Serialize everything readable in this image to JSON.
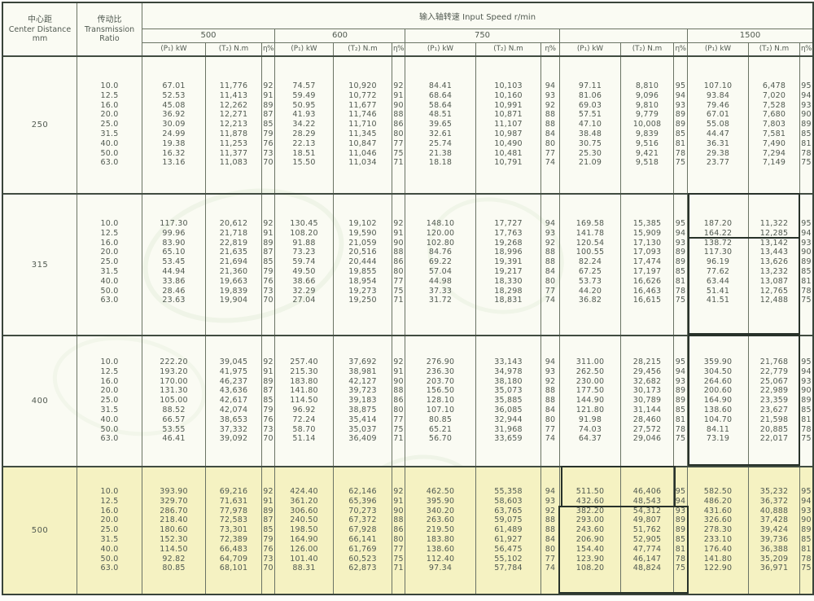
{
  "header": {
    "col_center_distance": {
      "line1": "中心距",
      "line2": "Center Distance",
      "line3": "mm"
    },
    "col_transmission_ratio": {
      "line1": "传动比",
      "line2": "Transmission",
      "line3": "Ratio"
    },
    "input_speed_label": "输入轴转速  Input Speed r/min",
    "speed_groups": [
      "500",
      "600",
      "750",
      "",
      "1500"
    ],
    "sub_headers": {
      "power": "(P₁) kW",
      "torque": "(T₂) N.m",
      "efficiency": "η%"
    }
  },
  "colors": {
    "highlight_row_bg": "#f5f2c2",
    "grid_line": "#6a7364",
    "block_line": "#414c41",
    "annotation_box": "#28322a",
    "text": "#515a51"
  },
  "table": {
    "blocks": [
      {
        "center_distance": "250",
        "highlighted": false,
        "ratios": [
          "10.0",
          "12.5",
          "16.0",
          "20.0",
          "25.0",
          "31.5",
          "40.0",
          "50.0",
          "63.0"
        ],
        "groups": [
          {
            "speed": "500",
            "P": [
              "67.01",
              "52.53",
              "45.08",
              "36.92",
              "30.09",
              "24.99",
              "19.38",
              "16.32",
              "13.16"
            ],
            "T": [
              "11,776",
              "11,413",
              "12,262",
              "12,271",
              "12,213",
              "11,878",
              "11,253",
              "11,377",
              "11,083"
            ],
            "eta": [
              "92",
              "91",
              "89",
              "87",
              "85",
              "79",
              "76",
              "73",
              "70"
            ]
          },
          {
            "speed": "600",
            "P": [
              "74.57",
              "59.49",
              "50.95",
              "41.93",
              "34.22",
              "28.29",
              "22.13",
              "18.51",
              "15.50"
            ],
            "T": [
              "10,920",
              "10,772",
              "11,677",
              "11,746",
              "11,710",
              "11,345",
              "10,847",
              "11,046",
              "11,034"
            ],
            "eta": [
              "92",
              "91",
              "90",
              "88",
              "86",
              "80",
              "77",
              "75",
              "71"
            ]
          },
          {
            "speed": "750",
            "P": [
              "84.41",
              "68.64",
              "58.64",
              "48.51",
              "39.65",
              "32.61",
              "25.74",
              "21.38",
              "18.18"
            ],
            "T": [
              "10,103",
              "10,160",
              "10,991",
              "10,871",
              "11,107",
              "10,987",
              "10,490",
              "10,481",
              "10,791"
            ],
            "eta": [
              "94",
              "93",
              "92",
              "88",
              "88",
              "84",
              "80",
              "77",
              "74"
            ]
          },
          {
            "speed": "",
            "P": [
              "97.11",
              "81.06",
              "69.03",
              "57.51",
              "47.10",
              "38.48",
              "30.75",
              "25.30",
              "21.09"
            ],
            "T": [
              "8,810",
              "9,096",
              "9,810",
              "9,779",
              "10,008",
              "9,839",
              "9,516",
              "9,421",
              "9,518"
            ],
            "eta": [
              "95",
              "94",
              "93",
              "89",
              "89",
              "85",
              "81",
              "78",
              "75"
            ]
          },
          {
            "speed": "1500",
            "P": [
              "107.10",
              "93.84",
              "79.46",
              "67.01",
              "55.08",
              "44.47",
              "36.31",
              "29.38",
              "23.77"
            ],
            "T": [
              "6,478",
              "7,020",
              "7,528",
              "7,680",
              "7,803",
              "7,581",
              "7,490",
              "7,294",
              "7,149"
            ],
            "eta": [
              "95",
              "94",
              "93",
              "90",
              "89",
              "85",
              "81",
              "78",
              "75"
            ]
          }
        ]
      },
      {
        "center_distance": "315",
        "highlighted": false,
        "ratios": [
          "10.0",
          "12.5",
          "16.0",
          "20.0",
          "25.0",
          "31.5",
          "40.0",
          "50.0",
          "63.0"
        ],
        "groups": [
          {
            "speed": "500",
            "P": [
              "117.30",
              "99.96",
              "83.90",
              "65.10",
              "53.45",
              "44.94",
              "33.86",
              "28.46",
              "23.63"
            ],
            "T": [
              "20,612",
              "21,718",
              "22,819",
              "21,635",
              "21,694",
              "21,360",
              "19,663",
              "19,839",
              "19,904"
            ],
            "eta": [
              "92",
              "91",
              "89",
              "87",
              "85",
              "79",
              "76",
              "73",
              "70"
            ]
          },
          {
            "speed": "600",
            "P": [
              "130.45",
              "108.20",
              "91.88",
              "73.23",
              "59.74",
              "49.50",
              "38.66",
              "32.29",
              "27.04"
            ],
            "T": [
              "19,102",
              "19,590",
              "21,059",
              "20,516",
              "20,444",
              "19,855",
              "18,954",
              "19,273",
              "19,250"
            ],
            "eta": [
              "92",
              "91",
              "90",
              "88",
              "86",
              "80",
              "77",
              "75",
              "71"
            ]
          },
          {
            "speed": "750",
            "P": [
              "148.10",
              "120.00",
              "102.80",
              "84.76",
              "69.22",
              "57.04",
              "44.98",
              "37.33",
              "31.72"
            ],
            "T": [
              "17,727",
              "17,763",
              "19,268",
              "18,996",
              "19,391",
              "19,217",
              "18,330",
              "18,298",
              "18,831"
            ],
            "eta": [
              "94",
              "93",
              "92",
              "88",
              "88",
              "84",
              "80",
              "77",
              "74"
            ]
          },
          {
            "speed": "",
            "P": [
              "169.58",
              "141.78",
              "120.54",
              "100.55",
              "82.24",
              "67.25",
              "53.73",
              "44.20",
              "36.82"
            ],
            "T": [
              "15,385",
              "15,909",
              "17,130",
              "17,093",
              "17,474",
              "17,197",
              "16,626",
              "16,463",
              "16,615"
            ],
            "eta": [
              "95",
              "94",
              "93",
              "89",
              "89",
              "85",
              "81",
              "78",
              "75"
            ]
          },
          {
            "speed": "1500",
            "P": [
              "187.20",
              "164.22",
              "138.72",
              "117.30",
              "96.19",
              "77.62",
              "63.44",
              "51.41",
              "41.51"
            ],
            "T": [
              "11,322",
              "12,285",
              "13,142",
              "13,443",
              "13,626",
              "13,232",
              "13,087",
              "12,765",
              "12,488"
            ],
            "eta": [
              "95",
              "94",
              "93",
              "90",
              "89",
              "85",
              "81",
              "78",
              "75"
            ]
          }
        ]
      },
      {
        "center_distance": "400",
        "highlighted": false,
        "ratios": [
          "10.0",
          "12.5",
          "16.0",
          "20.0",
          "25.0",
          "31.5",
          "40.0",
          "50.0",
          "63.0"
        ],
        "groups": [
          {
            "speed": "500",
            "P": [
              "222.20",
              "193.20",
              "170.00",
              "131.30",
              "105.00",
              "88.52",
              "66.57",
              "53.55",
              "46.41"
            ],
            "T": [
              "39,045",
              "41,975",
              "46,237",
              "43,636",
              "42,617",
              "42,074",
              "38,653",
              "37,332",
              "39,092"
            ],
            "eta": [
              "92",
              "91",
              "89",
              "87",
              "85",
              "79",
              "76",
              "73",
              "70"
            ]
          },
          {
            "speed": "600",
            "P": [
              "257.40",
              "215.30",
              "183.80",
              "141.80",
              "114.50",
              "96.92",
              "72.24",
              "58.70",
              "51.14"
            ],
            "T": [
              "37,692",
              "38,981",
              "42,127",
              "39,723",
              "39,183",
              "38,875",
              "35,414",
              "35,037",
              "36,409"
            ],
            "eta": [
              "92",
              "91",
              "90",
              "88",
              "86",
              "80",
              "77",
              "75",
              "71"
            ]
          },
          {
            "speed": "750",
            "P": [
              "276.90",
              "236.30",
              "203.70",
              "156.50",
              "128.10",
              "107.10",
              "80.85",
              "65.21",
              "56.70"
            ],
            "T": [
              "33,143",
              "34,978",
              "38,180",
              "35,073",
              "35,885",
              "36,085",
              "32,944",
              "31,968",
              "33,659"
            ],
            "eta": [
              "94",
              "93",
              "92",
              "88",
              "88",
              "84",
              "80",
              "77",
              "74"
            ]
          },
          {
            "speed": "",
            "P": [
              "311.00",
              "262.50",
              "230.00",
              "177.50",
              "144.90",
              "121.80",
              "91.98",
              "74.03",
              "64.37"
            ],
            "T": [
              "28,215",
              "29,456",
              "32,682",
              "30,173",
              "30,789",
              "31,144",
              "28,460",
              "27,572",
              "29,046"
            ],
            "eta": [
              "95",
              "94",
              "93",
              "89",
              "89",
              "85",
              "81",
              "78",
              "75"
            ]
          },
          {
            "speed": "1500",
            "P": [
              "359.90",
              "304.50",
              "264.60",
              "200.60",
              "164.90",
              "138.60",
              "104.70",
              "84.11",
              "73.19"
            ],
            "T": [
              "21,768",
              "22,779",
              "25,067",
              "22,989",
              "23,359",
              "23,627",
              "21,598",
              "20,885",
              "22,017"
            ],
            "eta": [
              "95",
              "94",
              "93",
              "90",
              "89",
              "85",
              "81",
              "78",
              "75"
            ]
          }
        ]
      },
      {
        "center_distance": "500",
        "highlighted": true,
        "ratios": [
          "10.0",
          "12.5",
          "16.0",
          "20.0",
          "25.0",
          "31.5",
          "40.0",
          "50.0",
          "63.0"
        ],
        "groups": [
          {
            "speed": "500",
            "P": [
              "393.90",
              "329.70",
              "286.70",
              "218.40",
              "180.60",
              "152.30",
              "114.50",
              "92.82",
              "80.85"
            ],
            "T": [
              "69,216",
              "71,631",
              "77,978",
              "72,583",
              "73,301",
              "72,389",
              "66,483",
              "64,709",
              "68,101"
            ],
            "eta": [
              "92",
              "91",
              "89",
              "87",
              "85",
              "79",
              "76",
              "73",
              "70"
            ]
          },
          {
            "speed": "600",
            "P": [
              "424.40",
              "361.20",
              "306.60",
              "240.50",
              "198.50",
              "164.90",
              "126.00",
              "101.40",
              "88.31"
            ],
            "T": [
              "62,146",
              "65,396",
              "70,273",
              "67,372",
              "67,928",
              "66,141",
              "61,769",
              "60,523",
              "62,873"
            ],
            "eta": [
              "92",
              "91",
              "90",
              "88",
              "86",
              "80",
              "77",
              "75",
              "71"
            ]
          },
          {
            "speed": "750",
            "P": [
              "462.50",
              "395.90",
              "340.20",
              "263.60",
              "219.50",
              "183.80",
              "138.60",
              "112.40",
              "97.34"
            ],
            "T": [
              "55,358",
              "58,603",
              "63,765",
              "59,075",
              "61,489",
              "61,927",
              "56,475",
              "55,102",
              "57,784"
            ],
            "eta": [
              "94",
              "93",
              "92",
              "88",
              "88",
              "84",
              "80",
              "77",
              "74"
            ]
          },
          {
            "speed": "",
            "P": [
              "511.50",
              "432.60",
              "382.20",
              "293.00",
              "243.60",
              "206.90",
              "154.40",
              "123.90",
              "108.20"
            ],
            "T": [
              "46,406",
              "48,543",
              "54,312",
              "49,807",
              "51,762",
              "52,905",
              "47,774",
              "46,147",
              "48,824"
            ],
            "eta": [
              "95",
              "94",
              "93",
              "89",
              "89",
              "85",
              "81",
              "78",
              "75"
            ]
          },
          {
            "speed": "1500",
            "P": [
              "582.50",
              "486.20",
              "431.60",
              "326.60",
              "278.30",
              "233.10",
              "176.40",
              "141.80",
              "122.90"
            ],
            "T": [
              "35,232",
              "36,372",
              "40,888",
              "37,428",
              "39,424",
              "39,736",
              "36,388",
              "35,209",
              "36,971"
            ],
            "eta": [
              "95",
              "94",
              "93",
              "90",
              "89",
              "85",
              "81",
              "78",
              "75"
            ]
          }
        ]
      }
    ]
  }
}
